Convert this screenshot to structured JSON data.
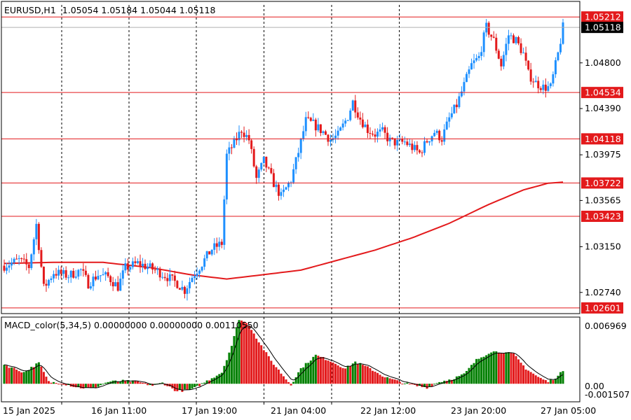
{
  "header": {
    "symbol": "EURUSD,H1",
    "ohlc": "1.05054 1.05184 1.05044 1.05118"
  },
  "indicator": {
    "label": "MACD_color(5,34,5) 0.00000000 0.00000000 0.00110550",
    "axis_labels": [
      "0.006969",
      "0.00",
      "-0.001507"
    ]
  },
  "colors": {
    "bull": "#1e90ff",
    "bear": "#e31a1c",
    "level_line": "#e31a1c",
    "ma": "#e31a1c",
    "macd_up": "#008000",
    "macd_down": "#e31a1c",
    "signal": "#000000",
    "grid": "#000000"
  },
  "chart_data": {
    "type": "candlestick",
    "price_axis_labels": [
      "1.04800",
      "1.04390",
      "1.03975",
      "1.03565",
      "1.03150",
      "1.02740"
    ],
    "level_lines": [
      "1.05212",
      "1.04534",
      "1.04118",
      "1.03722",
      "1.03423",
      "1.02601"
    ],
    "current_price": "1.05118",
    "ylim": [
      1.0255,
      1.0532
    ],
    "time_labels": [
      "15 Jan 2025",
      "16 Jan 11:00",
      "17 Jan 19:00",
      "21 Jan 04:00",
      "22 Jan 12:00",
      "23 Jan 20:00",
      "27 Jan 05:00"
    ],
    "close_path": [
      [
        0,
        1.0298
      ],
      [
        6,
        1.0303
      ],
      [
        10,
        1.0297
      ],
      [
        13,
        1.0335
      ],
      [
        16,
        1.0278
      ],
      [
        20,
        1.0292
      ],
      [
        26,
        1.0289
      ],
      [
        31,
        1.0294
      ],
      [
        34,
        1.0282
      ],
      [
        38,
        1.029
      ],
      [
        42,
        1.0288
      ],
      [
        46,
        1.0279
      ],
      [
        49,
        1.0296
      ],
      [
        54,
        1.03
      ],
      [
        58,
        1.0297
      ],
      [
        62,
        1.0293
      ],
      [
        66,
        1.0288
      ],
      [
        70,
        1.0282
      ],
      [
        73,
        1.0276
      ],
      [
        76,
        1.0288
      ],
      [
        80,
        1.03
      ],
      [
        84,
        1.0313
      ],
      [
        88,
        1.0318
      ],
      [
        90,
        1.0397
      ],
      [
        93,
        1.0408
      ],
      [
        96,
        1.042
      ],
      [
        99,
        1.0411
      ],
      [
        102,
        1.0376
      ],
      [
        105,
        1.0392
      ],
      [
        109,
        1.0372
      ],
      [
        112,
        1.036
      ],
      [
        116,
        1.0375
      ],
      [
        119,
        1.04
      ],
      [
        122,
        1.0428
      ],
      [
        125,
        1.0425
      ],
      [
        129,
        1.0418
      ],
      [
        132,
        1.0411
      ],
      [
        135,
        1.0415
      ],
      [
        139,
        1.0432
      ],
      [
        141,
        1.0445
      ],
      [
        144,
        1.043
      ],
      [
        147,
        1.042
      ],
      [
        150,
        1.0416
      ],
      [
        153,
        1.0418
      ],
      [
        156,
        1.041
      ],
      [
        159,
        1.0408
      ],
      [
        162,
        1.0409
      ],
      [
        165,
        1.0404
      ],
      [
        168,
        1.0399
      ],
      [
        171,
        1.041
      ],
      [
        174,
        1.0418
      ],
      [
        177,
        1.0412
      ],
      [
        180,
        1.043
      ],
      [
        183,
        1.0442
      ],
      [
        186,
        1.046
      ],
      [
        189,
        1.0478
      ],
      [
        192,
        1.0485
      ],
      [
        195,
        1.0512
      ],
      [
        198,
        1.05
      ],
      [
        201,
        1.0478
      ],
      [
        204,
        1.0505
      ],
      [
        207,
        1.05
      ],
      [
        210,
        1.0488
      ],
      [
        212,
        1.047
      ],
      [
        215,
        1.0462
      ],
      [
        218,
        1.0458
      ],
      [
        221,
        1.0458
      ],
      [
        224,
        1.0488
      ],
      [
        226,
        1.05118
      ]
    ],
    "ma_path": [
      [
        0,
        1.03
      ],
      [
        20,
        1.0301
      ],
      [
        40,
        1.0301
      ],
      [
        60,
        1.0296
      ],
      [
        75,
        1.029
      ],
      [
        90,
        1.0286
      ],
      [
        105,
        1.029
      ],
      [
        120,
        1.0294
      ],
      [
        135,
        1.0303
      ],
      [
        150,
        1.0312
      ],
      [
        165,
        1.0323
      ],
      [
        180,
        1.0336
      ],
      [
        195,
        1.0352
      ],
      [
        210,
        1.0366
      ],
      [
        220,
        1.0372
      ],
      [
        226,
        1.0373
      ]
    ],
    "macd_histogram_path": [
      [
        0,
        0.002
      ],
      [
        8,
        0.0012
      ],
      [
        14,
        0.0022
      ],
      [
        18,
        0.0002
      ],
      [
        24,
        0.0
      ],
      [
        30,
        -0.0004
      ],
      [
        36,
        -0.0005
      ],
      [
        42,
        0.0002
      ],
      [
        48,
        0.0003
      ],
      [
        54,
        0.0002
      ],
      [
        60,
        -0.0002
      ],
      [
        64,
        0.0001
      ],
      [
        70,
        -0.0008
      ],
      [
        76,
        -0.0006
      ],
      [
        82,
        0.0003
      ],
      [
        88,
        0.0012
      ],
      [
        92,
        0.004
      ],
      [
        95,
        0.0068
      ],
      [
        99,
        0.0062
      ],
      [
        103,
        0.0044
      ],
      [
        108,
        0.0024
      ],
      [
        113,
        0.0008
      ],
      [
        116,
        -0.0001
      ],
      [
        120,
        0.0016
      ],
      [
        126,
        0.003
      ],
      [
        132,
        0.0024
      ],
      [
        138,
        0.0016
      ],
      [
        142,
        0.0023
      ],
      [
        148,
        0.0016
      ],
      [
        154,
        0.0007
      ],
      [
        160,
        0.0002
      ],
      [
        166,
        -0.0002
      ],
      [
        171,
        -0.0004
      ],
      [
        176,
        0.0002
      ],
      [
        181,
        0.0005
      ],
      [
        186,
        0.001
      ],
      [
        191,
        0.0025
      ],
      [
        197,
        0.0034
      ],
      [
        202,
        0.0033
      ],
      [
        206,
        0.0031
      ],
      [
        211,
        0.0016
      ],
      [
        216,
        0.0007
      ],
      [
        220,
        0.0002
      ],
      [
        224,
        0.0008
      ],
      [
        226,
        0.0014
      ]
    ]
  }
}
